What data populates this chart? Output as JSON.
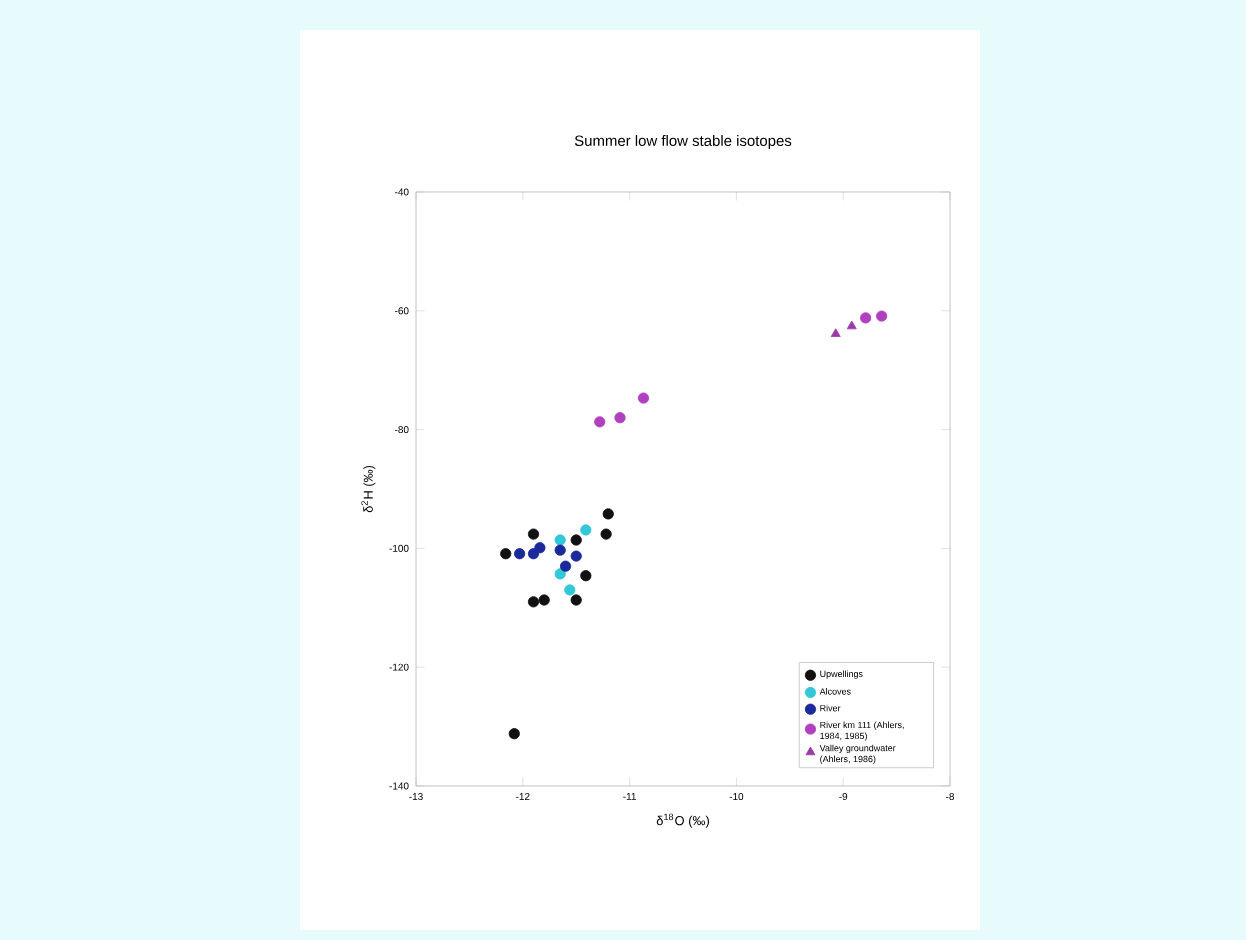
{
  "chart_data": {
    "type": "scatter",
    "title": "Summer low flow stable isotopes",
    "xlabel": "δ$^{18}$O (‰)",
    "ylabel": "δ$^{2}$H (‰)",
    "xlim": [
      -13,
      -8
    ],
    "xticks": [
      -13,
      -12,
      -11,
      -10,
      -9,
      -8
    ],
    "ylim": [
      -140,
      -40
    ],
    "yticks": [
      -140,
      -120,
      -100,
      -80,
      -60,
      -40
    ],
    "grid": false,
    "legend": "bottom right",
    "series": [
      {
        "name": "Upwellings",
        "color": "#111111",
        "marker": "circle",
        "x": [
          -11.9,
          -11.2,
          -11.22,
          -12.16,
          -11.5,
          -11.41,
          -11.9,
          -11.8,
          -11.5,
          -12.08
        ],
        "values": [
          -97.6,
          -94.2,
          -97.6,
          -100.9,
          -98.6,
          -104.6,
          -109.0,
          -108.7,
          -108.7,
          -131.2
        ]
      },
      {
        "name": "Alcoves",
        "color": "#33c8d8",
        "marker": "circle",
        "x": [
          -11.65,
          -11.41,
          -11.65,
          -11.56
        ],
        "values": [
          -98.6,
          -96.9,
          -104.3,
          -107.0
        ]
      },
      {
        "name": "River",
        "color": "#1a2a9a",
        "marker": "circle",
        "x": [
          -12.03,
          -11.9,
          -11.84,
          -11.6,
          -11.5,
          -11.65
        ],
        "values": [
          -100.9,
          -100.9,
          -99.9,
          -103.0,
          -101.3,
          -100.3
        ]
      },
      {
        "name": "River km 111 (Ahlers, 1984, 1985)",
        "color": "#b040c0",
        "marker": "circle",
        "x": [
          -11.28,
          -11.09,
          -10.87,
          -8.79,
          -8.64
        ],
        "values": [
          -78.7,
          -78.0,
          -74.7,
          -61.2,
          -60.9
        ]
      },
      {
        "name": "Valley groundwater (Ahlers, 1986)",
        "color": "#9a3aa8",
        "marker": "triangle",
        "x": [
          -9.07,
          -8.92
        ],
        "values": [
          -63.9,
          -62.6
        ]
      }
    ]
  }
}
